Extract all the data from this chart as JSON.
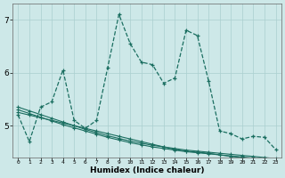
{
  "xlabel": "Humidex (Indice chaleur)",
  "bg_color": "#cde8e8",
  "grid_color": "#aacfcf",
  "line_color": "#1a6e60",
  "ylim": [
    4.4,
    7.3
  ],
  "xlim": [
    -0.5,
    23.5
  ],
  "yticks": [
    5,
    6,
    7
  ],
  "xticks": [
    0,
    1,
    2,
    3,
    4,
    5,
    6,
    7,
    8,
    9,
    10,
    11,
    12,
    13,
    14,
    15,
    16,
    17,
    18,
    19,
    20,
    21,
    22,
    23
  ],
  "series1": [
    5.2,
    4.7,
    5.35,
    5.45,
    6.05,
    5.1,
    4.95,
    5.1,
    6.1,
    7.1,
    6.55,
    6.2,
    6.15,
    5.8,
    5.9,
    6.8,
    6.7,
    5.85,
    4.9,
    4.85,
    4.75,
    4.8,
    4.78,
    4.55
  ],
  "series2": [
    5.25,
    5.2,
    5.15,
    5.1,
    5.05,
    5.0,
    4.95,
    4.9,
    4.85,
    4.8,
    4.75,
    4.7,
    4.65,
    4.6,
    4.55,
    4.52,
    4.5,
    4.48,
    4.45,
    4.42,
    4.4,
    4.38,
    4.36,
    4.34
  ],
  "series3": [
    5.35,
    5.28,
    5.21,
    5.14,
    5.07,
    5.0,
    4.93,
    4.87,
    4.81,
    4.76,
    4.71,
    4.67,
    4.63,
    4.6,
    4.57,
    4.54,
    4.52,
    4.5,
    4.48,
    4.46,
    4.44,
    4.42,
    4.4,
    4.38
  ],
  "series4": [
    5.3,
    5.23,
    5.16,
    5.09,
    5.02,
    4.96,
    4.9,
    4.84,
    4.78,
    4.73,
    4.68,
    4.64,
    4.6,
    4.57,
    4.54,
    4.51,
    4.49,
    4.47,
    4.45,
    4.43,
    4.41,
    4.39,
    4.37,
    4.35
  ]
}
